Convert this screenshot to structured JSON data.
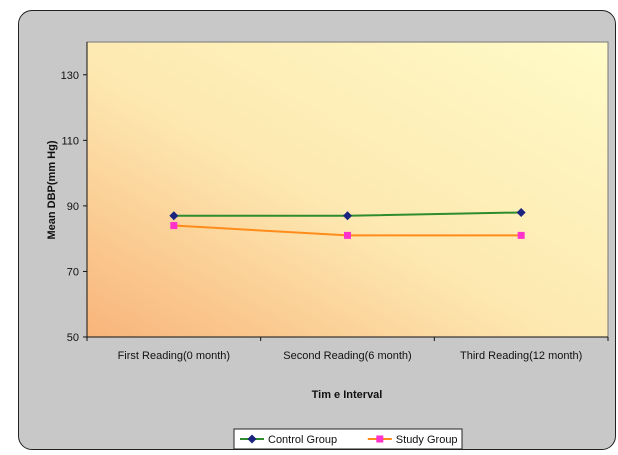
{
  "chart_data": {
    "type": "line",
    "categories": [
      "First Reading(0 month)",
      "Second Reading(6 month)",
      "Third Reading(12 month)"
    ],
    "series": [
      {
        "name": "Control Group",
        "values": [
          87,
          87,
          88
        ],
        "color": "#2e8b2e",
        "marker_color": "#1a237e",
        "marker": "diamond"
      },
      {
        "name": "Study Group",
        "values": [
          84,
          81,
          81
        ],
        "color": "#ff8c1a",
        "marker_color": "#ff33cc",
        "marker": "square"
      }
    ],
    "xlabel": "Tim e Interval",
    "ylabel": "Mean DBP(mm Hg)",
    "ylim": [
      50,
      140
    ],
    "yticks": [
      50,
      70,
      90,
      110,
      130
    ],
    "grid": false,
    "legend_position": "bottom",
    "plot_background": {
      "from": "#f8b47a",
      "to": "#fffbc8"
    }
  }
}
